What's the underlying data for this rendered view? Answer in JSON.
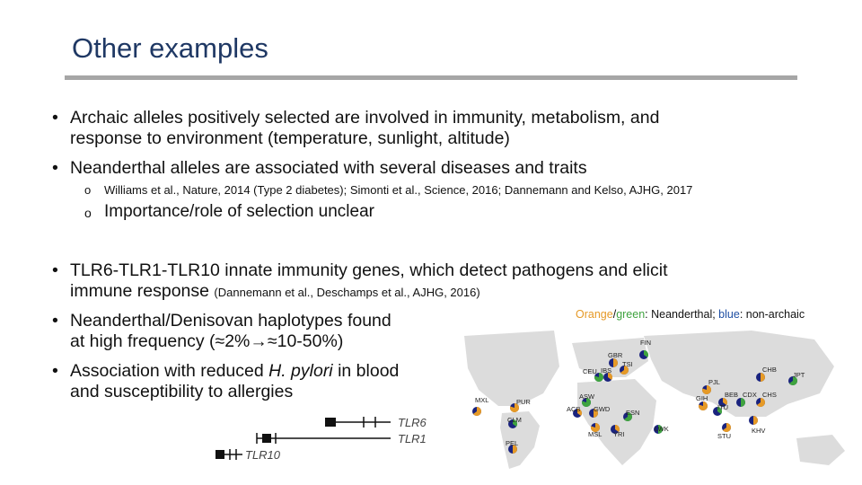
{
  "title": "Other examples",
  "bullets": {
    "b1_line1": "Archaic alleles positively selected are involved in immunity, metabolism, and",
    "b1_line2": "response to environment (temperature, sunlight, altitude)",
    "b2": "Neanderthal alleles are associated with several diseases and traits",
    "sub1": "Williams et al., Nature, 2014 (Type 2 diabetes); Simonti et al., Science, 2016; Dannemann and Kelso, AJHG, 2017",
    "sub2": "Importance/role of selection unclear",
    "b3_line1": "TLR6-TLR1-TLR10 innate immunity genes, which detect pathogens and elicit",
    "b3_line2": "immune response ",
    "b3_cite": "(Dannemann et al., Deschamps et al., AJHG, 2016)",
    "b4_line1": "Neanderthal/Denisovan haplotypes found",
    "b4_line2_a": "at high frequency (≈2%",
    "b4_line2_b": "≈10-50%)",
    "b5_line1_a": "Association with reduced ",
    "b5_line1_em": "H. pylori",
    "b5_line1_b": " in blood",
    "b5_line2": "and susceptibility to allergies"
  },
  "legend": {
    "orange": "Orange",
    "slash": "/",
    "green": "green",
    "mid": ": Neanderthal; ",
    "blue": "blue",
    "end": ": non-archaic"
  },
  "genes": [
    "TLR6",
    "TLR1",
    "TLR10"
  ],
  "populations": [
    {
      "code": "FIN"
    },
    {
      "code": "GBR"
    },
    {
      "code": "TSI"
    },
    {
      "code": "CEU"
    },
    {
      "code": "IBS"
    },
    {
      "code": "CHB"
    },
    {
      "code": "JPT"
    },
    {
      "code": "PJL"
    },
    {
      "code": "BEB"
    },
    {
      "code": "CDX"
    },
    {
      "code": "CHS"
    },
    {
      "code": "GIH"
    },
    {
      "code": "ITU"
    },
    {
      "code": "KHV"
    },
    {
      "code": "STU"
    },
    {
      "code": "ASW"
    },
    {
      "code": "ACB"
    },
    {
      "code": "GWD"
    },
    {
      "code": "ESN"
    },
    {
      "code": "MSL"
    },
    {
      "code": "YRI"
    },
    {
      "code": "LWK"
    },
    {
      "code": "MXL"
    },
    {
      "code": "PUR"
    },
    {
      "code": "CLM"
    },
    {
      "code": "PEL"
    }
  ],
  "colors": {
    "title": "#1f3864",
    "orange": "#e69a27",
    "green": "#3fa33f",
    "blue": "#1f4fa3",
    "navy": "#1a237e"
  }
}
